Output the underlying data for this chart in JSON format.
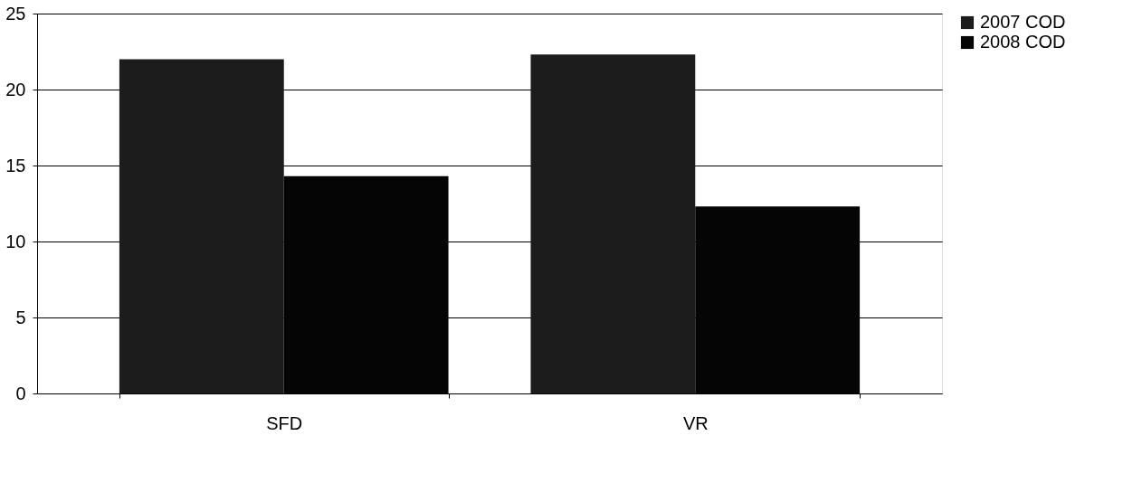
{
  "chart_data": {
    "type": "bar",
    "categories": [
      "SFD",
      "VR"
    ],
    "series": [
      {
        "name": "2007 COD",
        "color": "#1c1c1c",
        "values": [
          22.0,
          22.3
        ]
      },
      {
        "name": "2008 COD",
        "color": "#050505",
        "values": [
          14.3,
          12.3
        ]
      }
    ],
    "ylim": [
      0,
      25
    ],
    "yticks": [
      0,
      5,
      10,
      15,
      20,
      25
    ],
    "grid": "y",
    "legend": "right"
  }
}
